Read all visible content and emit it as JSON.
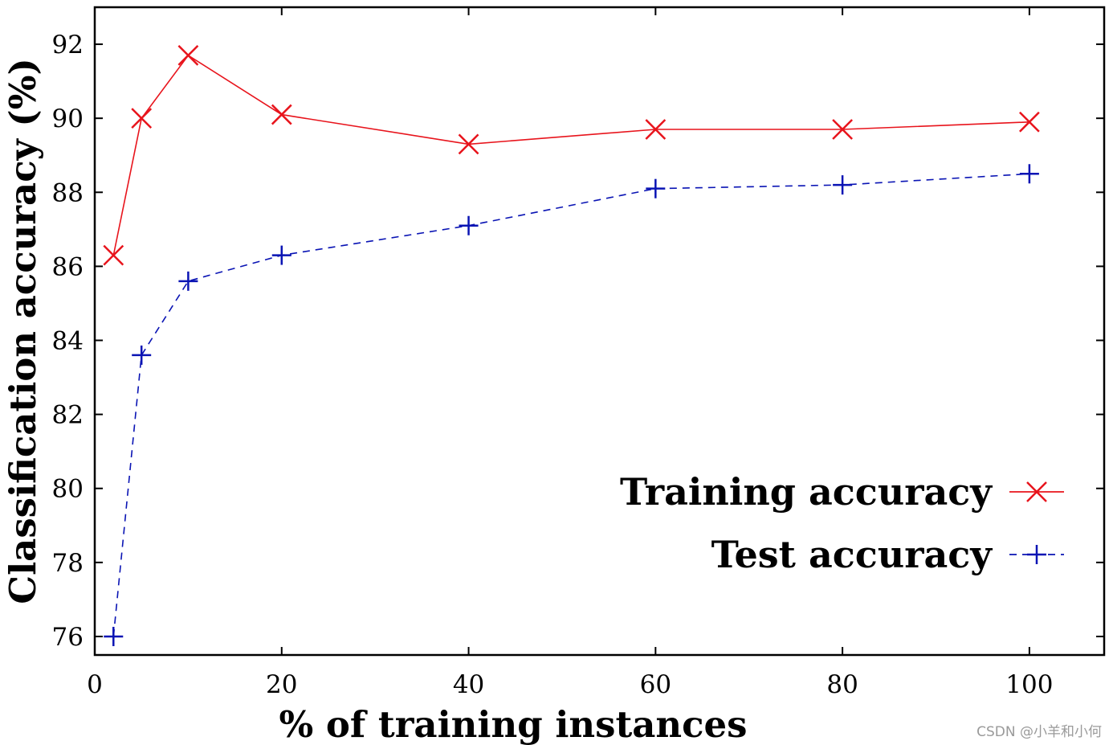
{
  "chart_data": {
    "type": "line",
    "title": "",
    "xlabel": "% of training instances",
    "ylabel": "Classification accuracy (%)",
    "xlim": [
      0,
      108
    ],
    "ylim": [
      75.5,
      93
    ],
    "xticks": [
      0,
      20,
      40,
      60,
      80,
      100
    ],
    "yticks": [
      76,
      78,
      80,
      82,
      84,
      86,
      88,
      90,
      92
    ],
    "grid": false,
    "legend_position": "bottom-right",
    "series": [
      {
        "name": "Training accuracy",
        "color": "#e8141c",
        "marker": "x",
        "line_style": "solid",
        "x": [
          2,
          5,
          10,
          20,
          40,
          60,
          80,
          100
        ],
        "y": [
          86.3,
          90.0,
          91.7,
          90.1,
          89.3,
          89.7,
          89.7,
          89.9
        ]
      },
      {
        "name": "Test accuracy",
        "color": "#0a14b4",
        "marker": "+",
        "line_style": "dashed",
        "x": [
          2,
          5,
          10,
          20,
          40,
          60,
          80,
          100
        ],
        "y": [
          76.0,
          83.6,
          85.6,
          86.3,
          87.1,
          88.1,
          88.2,
          88.5
        ]
      }
    ]
  },
  "watermark": "CSDN @小羊和小何"
}
